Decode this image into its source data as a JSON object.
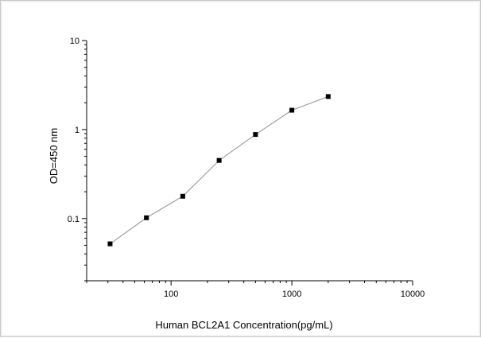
{
  "chart_data": {
    "type": "line",
    "title": "",
    "xlabel": "Human BCL2A1 Concentration(pg/mL)",
    "ylabel": "OD=450 nm",
    "xscale": "log",
    "yscale": "log",
    "xlim": [
      20,
      10000
    ],
    "ylim": [
      0.02,
      10
    ],
    "x_ticks": [
      100,
      1000,
      10000
    ],
    "x_tick_labels": [
      "100",
      "1000",
      "10000"
    ],
    "y_ticks": [
      0.1,
      1,
      10
    ],
    "y_tick_labels": [
      "0.1",
      "1",
      "10"
    ],
    "grid": false,
    "legend": "none",
    "series": [
      {
        "x": [
          31.25,
          62.5,
          125,
          250,
          500,
          1000,
          2000
        ],
        "y": [
          0.052,
          0.102,
          0.178,
          0.45,
          0.88,
          1.65,
          2.35
        ]
      }
    ],
    "colors": {
      "line": "#8c8c8c",
      "marker": "#000000",
      "axis": "#000000"
    }
  }
}
